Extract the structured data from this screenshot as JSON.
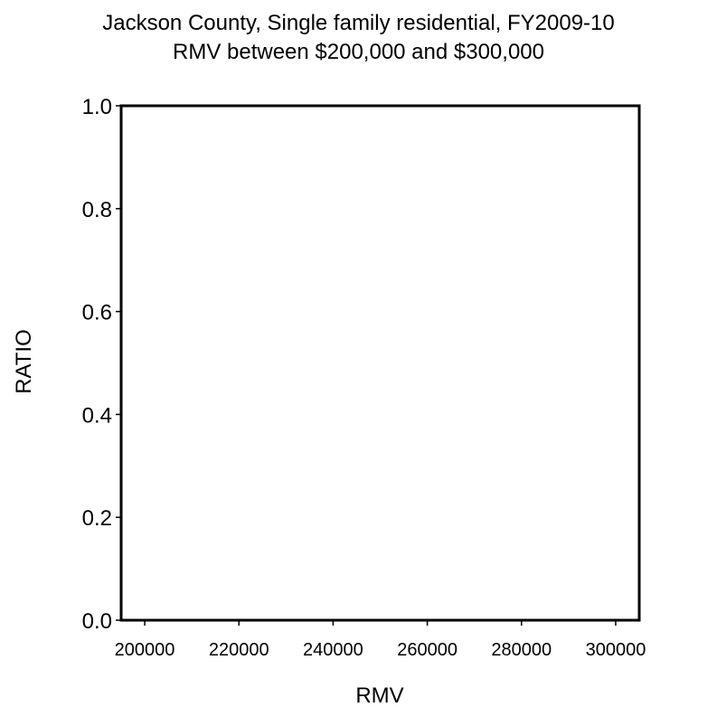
{
  "chart_data": {
    "type": "scatter",
    "title": "Jackson County, Single family residential, FY2009-10",
    "subtitle": "RMV between $200,000 and $300,000",
    "xlabel": "RMV",
    "ylabel": "RATIO",
    "xlim": [
      195000,
      305000
    ],
    "ylim": [
      0.0,
      1.0
    ],
    "x_ticks": [
      200000,
      220000,
      240000,
      260000,
      280000,
      300000
    ],
    "x_tick_labels": [
      "200000",
      "220000",
      "240000",
      "260000",
      "280000",
      "300000"
    ],
    "y_ticks": [
      0.0,
      0.2,
      0.4,
      0.6,
      0.8,
      1.0
    ],
    "y_tick_labels": [
      "0.0",
      "0.2",
      "0.4",
      "0.6",
      "0.8",
      "1.0"
    ],
    "grid": false,
    "series": [
      {
        "x": [],
        "y": []
      }
    ]
  }
}
